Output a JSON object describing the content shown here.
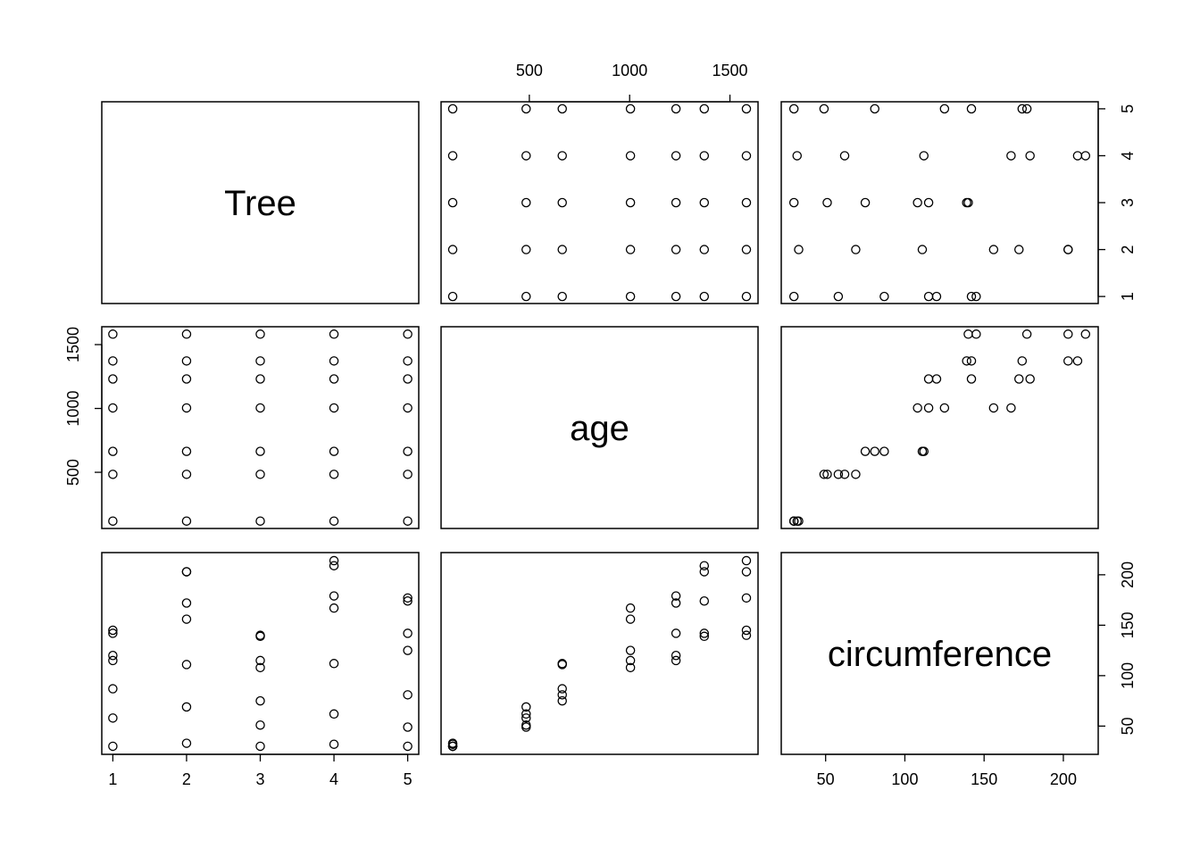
{
  "chart_data": {
    "type": "scatter",
    "variables": [
      "Tree",
      "age",
      "circumference"
    ],
    "ranges": {
      "Tree": [
        0.85,
        5.15
      ],
      "age": [
        60,
        1640
      ],
      "circumference": [
        22,
        222
      ]
    },
    "ticks": {
      "Tree": [
        1,
        2,
        3,
        4,
        5
      ],
      "age": [
        500,
        1000,
        1500
      ],
      "circumference": [
        50,
        100,
        150,
        200
      ]
    },
    "grid": false,
    "legend": "none",
    "point_style": "open-circle",
    "observations": {
      "Tree": [
        1,
        1,
        1,
        1,
        1,
        1,
        1,
        2,
        2,
        2,
        2,
        2,
        2,
        2,
        3,
        3,
        3,
        3,
        3,
        3,
        3,
        4,
        4,
        4,
        4,
        4,
        4,
        4,
        5,
        5,
        5,
        5,
        5,
        5,
        5
      ],
      "age": [
        118,
        484,
        664,
        1004,
        1231,
        1372,
        1582,
        118,
        484,
        664,
        1004,
        1231,
        1372,
        1582,
        118,
        484,
        664,
        1004,
        1231,
        1372,
        1582,
        118,
        484,
        664,
        1004,
        1231,
        1372,
        1582,
        118,
        484,
        664,
        1004,
        1231,
        1372,
        1582
      ],
      "circumference": [
        30,
        58,
        87,
        115,
        120,
        142,
        145,
        33,
        69,
        111,
        156,
        172,
        203,
        203,
        30,
        51,
        75,
        108,
        115,
        139,
        140,
        32,
        62,
        112,
        167,
        179,
        209,
        214,
        30,
        49,
        81,
        125,
        142,
        174,
        177
      ]
    }
  }
}
